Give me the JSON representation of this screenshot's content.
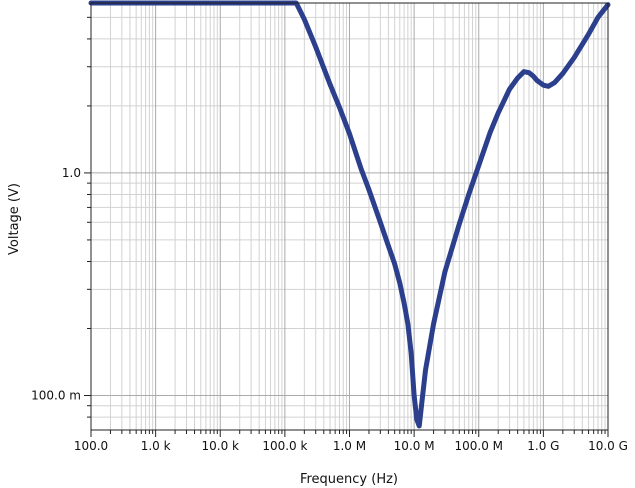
{
  "chart_data": {
    "type": "line",
    "title": "",
    "xlabel": "Frequency (Hz)",
    "ylabel": "Voltage (V)",
    "x_scale": "log",
    "y_scale": "log",
    "xlim": [
      100,
      10000000000
    ],
    "ylim": [
      0.07,
      5.8
    ],
    "grid": true,
    "x_ticks": [
      {
        "value": 100,
        "label": "100.0"
      },
      {
        "value": 1000,
        "label": "1.0 k"
      },
      {
        "value": 10000,
        "label": "10.0 k"
      },
      {
        "value": 100000,
        "label": "100.0 k"
      },
      {
        "value": 1000000,
        "label": "1.0 M"
      },
      {
        "value": 10000000,
        "label": "10.0 M"
      },
      {
        "value": 100000000,
        "label": "100.0 M"
      },
      {
        "value": 1000000000,
        "label": "1.0 G"
      },
      {
        "value": 10000000000,
        "label": "10.0 G"
      }
    ],
    "y_ticks": [
      {
        "value": 0.1,
        "label": "100.0 m"
      },
      {
        "value": 1.0,
        "label": "1.0"
      }
    ],
    "series": [
      {
        "color": "#2b3f8c",
        "x": [
          100,
          1000,
          10000,
          100000,
          150000,
          200000,
          300000,
          500000,
          700000,
          1000000,
          1500000,
          2000000,
          3000000,
          4000000,
          5000000,
          6000000,
          7000000,
          8000000,
          9000000,
          10000000,
          11000000,
          12000000,
          13000000,
          15000000,
          20000000,
          30000000,
          50000000,
          70000000,
          100000000,
          150000000,
          200000000,
          300000000,
          400000000,
          500000000,
          600000000,
          700000000,
          800000000,
          1000000000,
          1200000000,
          1500000000,
          2000000000,
          3000000000,
          5000000000,
          7000000000,
          10000000000
        ],
        "y": [
          5.8,
          5.8,
          5.8,
          5.8,
          5.8,
          4.9,
          3.68,
          2.5,
          1.97,
          1.5,
          1.05,
          0.84,
          0.6,
          0.47,
          0.39,
          0.32,
          0.26,
          0.21,
          0.155,
          0.1,
          0.078,
          0.073,
          0.09,
          0.13,
          0.21,
          0.36,
          0.59,
          0.8,
          1.08,
          1.52,
          1.86,
          2.38,
          2.67,
          2.85,
          2.82,
          2.72,
          2.6,
          2.48,
          2.45,
          2.55,
          2.8,
          3.3,
          4.2,
          5.0,
          5.7
        ]
      }
    ]
  }
}
